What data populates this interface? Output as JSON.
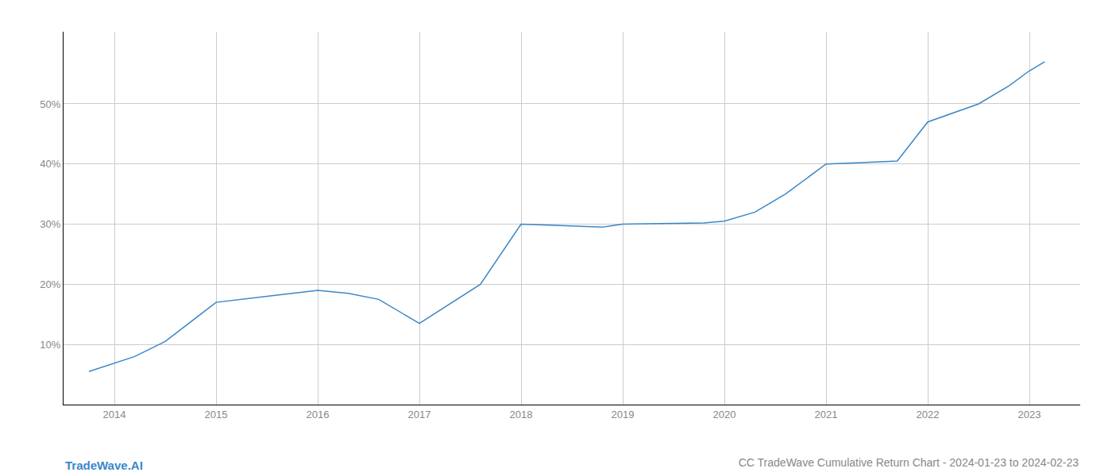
{
  "chart_data": {
    "type": "line",
    "title": "CC TradeWave Cumulative Return Chart - 2024-01-23 to 2024-02-23",
    "annotations": [
      "TradeWave.AI"
    ],
    "x": [
      2013.75,
      2014.2,
      2014.5,
      2015.0,
      2015.5,
      2016.0,
      2016.3,
      2016.6,
      2017.0,
      2017.6,
      2018.0,
      2018.3,
      2018.8,
      2019.0,
      2019.5,
      2019.8,
      2020.0,
      2020.3,
      2020.6,
      2021.0,
      2021.3,
      2021.7,
      2022.0,
      2022.5,
      2022.8,
      2023.0,
      2023.15
    ],
    "values": [
      5.5,
      8.0,
      10.5,
      17.0,
      18.0,
      19.0,
      18.5,
      17.5,
      13.5,
      20.0,
      30.0,
      29.8,
      29.5,
      30.0,
      30.1,
      30.2,
      30.5,
      32.0,
      35.0,
      40.0,
      40.2,
      40.5,
      47.0,
      50.0,
      53.0,
      55.5,
      57.0
    ],
    "color": "#3a87c8",
    "xlim": [
      2013.5,
      2023.5
    ],
    "xticks": [
      2014,
      2015,
      2016,
      2017,
      2018,
      2019,
      2020,
      2021,
      2022,
      2023
    ],
    "ylim": [
      0,
      62
    ],
    "yticks": [
      {
        "value": 10,
        "label": "10%"
      },
      {
        "value": 20,
        "label": "20%"
      },
      {
        "value": 30,
        "label": "30%"
      },
      {
        "value": 40,
        "label": "40%"
      },
      {
        "value": 50,
        "label": "50%"
      }
    ],
    "grid": true
  }
}
